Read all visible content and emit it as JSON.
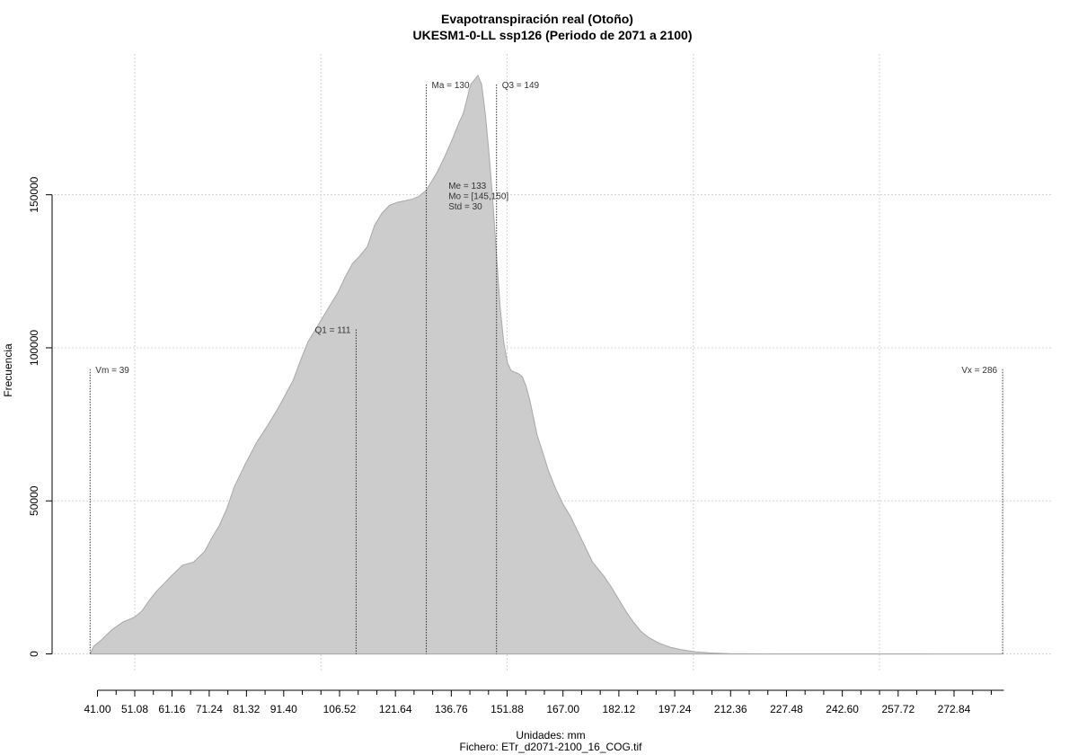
{
  "chart_data": {
    "type": "area",
    "title": "Evapotranspiración real (Otoño)",
    "subtitle": "UKESM1-0-LL ssp126 (Periodo de 2071 a 2100)",
    "xlabel": "Unidades: mm",
    "footer": "Fichero: ETr_d2071-2100_16_COG.tif",
    "ylabel": "Frecuencia",
    "xlim": [
      29.2,
      299.1
    ],
    "ylim": [
      -6000,
      196000
    ],
    "x_ticks": [
      41.0,
      51.08,
      61.16,
      71.24,
      81.32,
      91.4,
      106.52,
      121.64,
      136.76,
      151.88,
      167.0,
      182.12,
      197.24,
      212.36,
      227.48,
      242.6,
      257.72,
      272.84
    ],
    "x_tick_labels": [
      "41.00",
      "51.08",
      "61.16",
      "71.24",
      "81.32",
      "91.40",
      "106.52",
      "121.64",
      "136.76",
      "151.88",
      "167.00",
      "182.12",
      "197.24",
      "212.36",
      "227.48",
      "242.60",
      "257.72",
      "272.84"
    ],
    "x_minor_ticks": [
      46.04,
      56.12,
      66.2,
      76.28,
      86.36,
      96.44,
      101.48,
      111.56,
      116.6,
      126.68,
      131.72,
      141.8,
      146.84,
      156.92,
      161.96,
      172.04,
      177.08,
      187.16,
      192.2,
      202.28,
      207.32,
      217.4,
      222.44,
      232.52,
      237.56,
      247.64,
      252.68,
      262.76,
      267.8,
      277.88,
      282.92
    ],
    "y_ticks": [
      0,
      50000,
      100000,
      150000
    ],
    "y_tick_labels": [
      "0",
      "50000",
      "100000",
      "150000"
    ],
    "grid": true,
    "grid_x": [
      51.08,
      101.48,
      151.88,
      202.28,
      252.68
    ],
    "fill_color": "#cccccc",
    "line_color": "#a8a8a8",
    "series": [
      {
        "x": [
          39,
          40,
          42,
          45,
          48,
          50,
          51,
          53,
          55,
          57,
          59,
          61,
          64,
          67,
          70,
          72,
          74,
          76,
          78,
          81,
          84,
          87,
          90,
          92,
          94,
          96,
          98,
          100,
          102,
          104,
          106,
          108,
          110,
          112,
          114,
          116,
          118,
          120,
          122,
          124,
          126,
          128,
          129,
          130,
          131,
          133,
          135,
          137,
          139,
          140,
          142,
          144,
          145,
          146,
          147,
          148,
          149,
          150,
          151,
          152,
          153,
          154,
          155,
          156,
          157,
          158,
          160,
          162,
          163,
          165,
          167,
          169,
          171,
          173,
          175,
          178,
          180,
          182,
          184,
          186,
          188,
          190,
          193,
          196,
          199,
          203,
          207,
          212,
          218,
          225,
          235,
          250,
          270,
          286
        ],
        "y": [
          0,
          2500,
          4500,
          8000,
          10500,
          11500,
          12000,
          14000,
          17500,
          20500,
          23000,
          25500,
          29000,
          30000,
          33500,
          38000,
          42000,
          47500,
          54500,
          62000,
          69000,
          74500,
          80500,
          85000,
          89500,
          96000,
          102000,
          106000,
          110000,
          114000,
          118000,
          123000,
          127500,
          130000,
          133000,
          140000,
          144000,
          146500,
          147500,
          148000,
          148500,
          149500,
          150500,
          151500,
          153500,
          157500,
          162500,
          168000,
          174000,
          176500,
          186000,
          189000,
          186000,
          176000,
          163000,
          148000,
          130000,
          113000,
          101500,
          95000,
          92500,
          92000,
          91500,
          90500,
          87500,
          83000,
          71500,
          64000,
          60000,
          54000,
          49000,
          45000,
          40000,
          35000,
          30000,
          25500,
          22000,
          18000,
          14000,
          10500,
          7500,
          5500,
          3500,
          2200,
          1400,
          700,
          300,
          120,
          50,
          20,
          10,
          5,
          2,
          0
        ]
      }
    ],
    "vlines": [
      {
        "x": 39,
        "y_top": 93000,
        "label": "Vm = 39",
        "label_side": "right"
      },
      {
        "x": 111,
        "y_top": 106000,
        "label": "Q1 = 111",
        "label_side": "left"
      },
      {
        "x": 130,
        "y_top": 186000,
        "label": "Ma = 130",
        "label_side": "right"
      },
      {
        "x": 149,
        "y_top": 186000,
        "label": "Q3 = 149",
        "label_side": "right"
      },
      {
        "x": 286,
        "y_top": 93000,
        "label": "Vx = 286",
        "label_side": "left"
      }
    ],
    "stats_block": {
      "x": 136,
      "y": 152000,
      "lines": [
        "Me = 133",
        "Mo = [145,150]",
        "Std = 30"
      ]
    }
  }
}
